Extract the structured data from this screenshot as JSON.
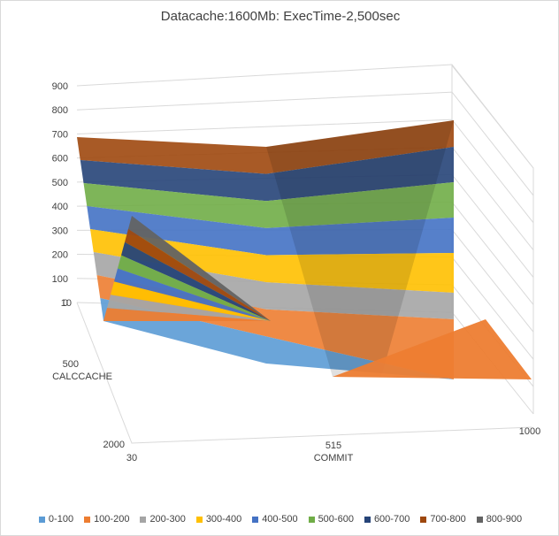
{
  "chart_data": {
    "type": "3d-surface",
    "title": "Datacache:1600Mb: ExecTime-2,500sec",
    "z_ticks": [
      "0",
      "100",
      "200",
      "300",
      "400",
      "500",
      "600",
      "700",
      "800",
      "900"
    ],
    "z_range": [
      0,
      900
    ],
    "x_axis": {
      "label": "COMMIT",
      "ticks": [
        "30",
        "515",
        "1000"
      ]
    },
    "y_axis": {
      "label": "CALCCACHE",
      "ticks": [
        "10",
        "500",
        "2000"
      ]
    },
    "legend_position": "bottom",
    "legend": [
      {
        "label": "0-100",
        "color": "#5b9bd5"
      },
      {
        "label": "100-200",
        "color": "#ed7d31"
      },
      {
        "label": "200-300",
        "color": "#a5a5a5"
      },
      {
        "label": "300-400",
        "color": "#ffc000"
      },
      {
        "label": "400-500",
        "color": "#4472c4"
      },
      {
        "label": "500-600",
        "color": "#70ad47"
      },
      {
        "label": "600-700",
        "color": "#264478"
      },
      {
        "label": "700-800",
        "color": "#9e480e"
      },
      {
        "label": "800-900",
        "color": "#636363"
      }
    ],
    "back_edge_heights": [
      {
        "commit": "30",
        "value": 690
      },
      {
        "commit": "515",
        "value": 610
      },
      {
        "commit": "1000",
        "value": 700
      }
    ],
    "left_edge_heights": [
      {
        "calccache": "10",
        "value": 690
      },
      {
        "calccache": "500",
        "value": 330
      },
      {
        "calccache": "2000",
        "value": 0
      }
    ]
  }
}
